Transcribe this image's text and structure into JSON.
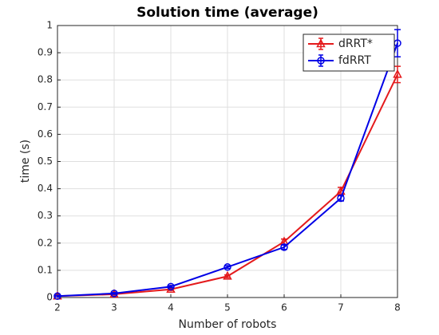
{
  "chart_data": {
    "type": "line",
    "title": "Solution time (average)",
    "x_label": "Number of robots",
    "y_label": "time (s)",
    "x": [
      2,
      3,
      4,
      5,
      6,
      7,
      8
    ],
    "xlim": [
      2,
      8
    ],
    "xticks": [
      2,
      3,
      4,
      5,
      6,
      7,
      8
    ],
    "ylim": [
      0,
      1
    ],
    "yticks": [
      0,
      0.1,
      0.2,
      0.3,
      0.4,
      0.5,
      0.6,
      0.7,
      0.8,
      0.9,
      1
    ],
    "grid": true,
    "legend": "top-right",
    "series": [
      {
        "name": "dRRT*",
        "color": "#e41a1c",
        "marker": "triangle",
        "values": [
          0.005,
          0.012,
          0.03,
          0.078,
          0.205,
          0.39,
          0.82
        ],
        "errors": [
          0.003,
          0.003,
          0.004,
          0.005,
          0.01,
          0.015,
          0.03
        ]
      },
      {
        "name": "fdRRT",
        "color": "#0000e6",
        "marker": "circle",
        "values": [
          0.005,
          0.015,
          0.04,
          0.112,
          0.185,
          0.365,
          0.935
        ],
        "errors": [
          0.003,
          0.003,
          0.004,
          0.005,
          0.008,
          0.01,
          0.05
        ]
      }
    ]
  }
}
